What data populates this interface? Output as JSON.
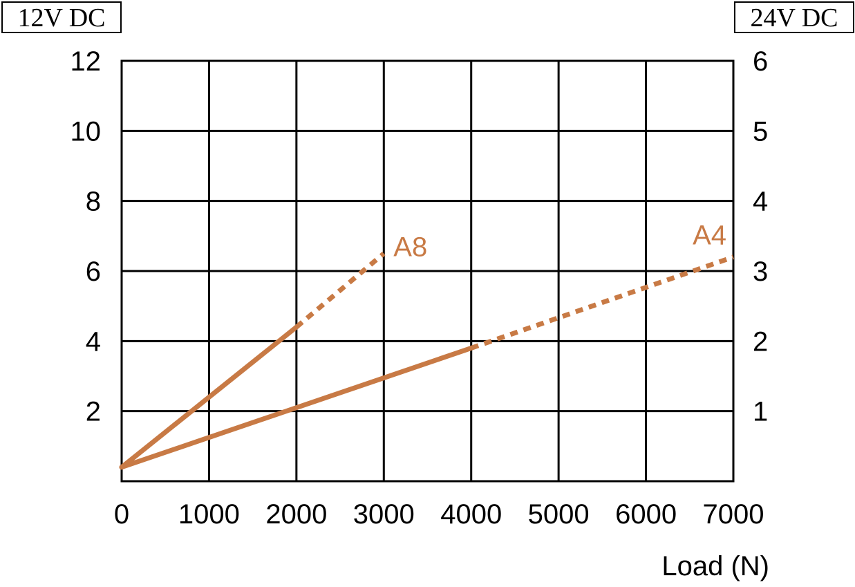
{
  "chart_data": {
    "type": "line",
    "title": "",
    "left_axis_label": "12V DC",
    "right_axis_label": "24V DC",
    "xlabel": "Load (N)",
    "xlim": [
      0,
      7000
    ],
    "ylim_left": [
      0,
      12
    ],
    "ylim_right": [
      0,
      6
    ],
    "x_ticks": [
      "0",
      "1000",
      "2000",
      "3000",
      "4000",
      "5000",
      "6000",
      "7000"
    ],
    "x_tick_values": [
      0,
      1000,
      2000,
      3000,
      4000,
      5000,
      6000,
      7000
    ],
    "left_ticks": [
      "2",
      "4",
      "6",
      "8",
      "10",
      "12"
    ],
    "left_tick_values": [
      2,
      4,
      6,
      8,
      10,
      12
    ],
    "right_ticks": [
      "1",
      "2",
      "3",
      "4",
      "5",
      "6"
    ],
    "right_tick_values": [
      1,
      2,
      3,
      4,
      5,
      6
    ],
    "grid": true,
    "line_color": "#c87a45",
    "series": [
      {
        "name": "A8",
        "solid": {
          "x": [
            0,
            2000
          ],
          "y": [
            0.4,
            4.4
          ]
        },
        "dotted": {
          "x": [
            2000,
            3000
          ],
          "y": [
            4.4,
            6.5
          ]
        }
      },
      {
        "name": "A4",
        "solid": {
          "x": [
            0,
            4000
          ],
          "y": [
            0.4,
            3.8
          ]
        },
        "dotted": {
          "x": [
            4000,
            7000
          ],
          "y": [
            3.8,
            6.4
          ]
        }
      }
    ]
  }
}
